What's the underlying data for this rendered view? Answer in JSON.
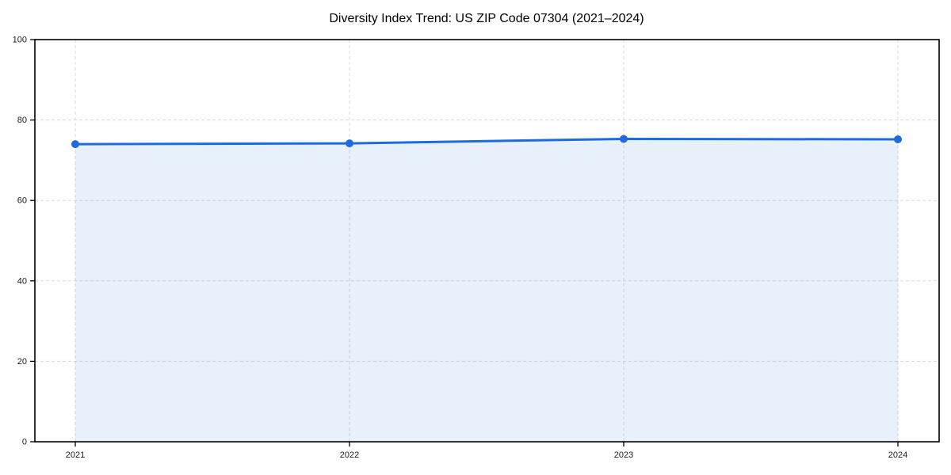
{
  "chart_data": {
    "type": "line",
    "title": "Diversity Index Trend: US ZIP Code 07304 (2021–2024)",
    "categories": [
      "2021",
      "2022",
      "2023",
      "2024"
    ],
    "series": [
      {
        "name": "Diversity Index",
        "values": [
          74.0,
          74.2,
          75.3,
          75.2
        ],
        "color": "#1e6be0",
        "marker": "circle",
        "marker_radius": 5,
        "line_width": 3,
        "area_fill": true,
        "fill_opacity": 0.1
      }
    ],
    "xlabel": "",
    "ylabel": "",
    "ylim": [
      0,
      100
    ],
    "yticks": [
      0,
      20,
      40,
      60,
      80,
      100
    ],
    "grid": "both",
    "grid_style": "dashed",
    "grid_color": "#d8d8d8",
    "axis_color": "#000000",
    "tick_label_color": "#1a1a1a",
    "background": "#ffffff",
    "legend_position": "none"
  }
}
